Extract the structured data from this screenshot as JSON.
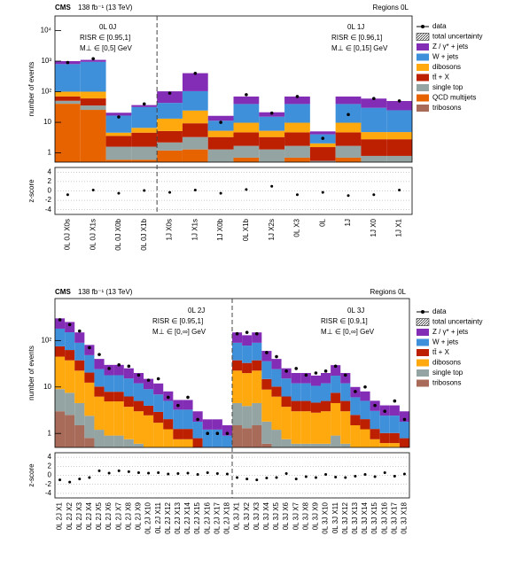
{
  "chart_data": [
    {
      "type": "stacked_bar",
      "title": "CMS",
      "subtitle": "138 fb⁻¹ (13 TeV)",
      "region_label": "Regions 0L",
      "ylabel": "number of events",
      "log_scale": true,
      "ylim": [
        0.5,
        30000
      ],
      "yticks": [
        1,
        10,
        {
          "value": 100,
          "label": "10²"
        },
        {
          "value": 1000,
          "label": "10³"
        },
        {
          "value": 10000,
          "label": "10⁴"
        }
      ],
      "separator_after": 4,
      "annotations": [
        "0L 0J",
        "RISR ∈ [0.95,1]",
        "M⊥ ∈ [0,5] GeV",
        "0L 1J",
        "RISR ∈ [0.96,1]",
        "M⊥ ∈ [0,15] GeV"
      ],
      "categories": [
        "0L 0J X0s",
        "0L 0J X1s",
        "0L 0J X0b",
        "0L 0J X1b",
        "1J X0s",
        "1J X1s",
        "1J X0b",
        "0L X1b",
        "1J X2s",
        "0L X3",
        "0L",
        "1J",
        "1J X0",
        "1J X1"
      ],
      "uncertainty_label": "total uncertainty",
      "data": {
        "name": "data",
        "values": [
          900,
          1200,
          15,
          40,
          90,
          400,
          10,
          80,
          20,
          70,
          3,
          18,
          60,
          50
        ]
      },
      "series": [
        {
          "name": "Z / γ* + jets",
          "color": "#832db6",
          "values": [
            200,
            150,
            4,
            5,
            60,
            300,
            5,
            30,
            6,
            30,
            1,
            30,
            30,
            25
          ]
        },
        {
          "name": "W + jets",
          "color": "#3f90da",
          "values": [
            700,
            850,
            12,
            25,
            30,
            80,
            6,
            30,
            10,
            30,
            2,
            30,
            25,
            20
          ]
        },
        {
          "name": "dibosons",
          "color": "#ffa90e",
          "values": [
            30,
            40,
            1,
            2,
            8,
            15,
            2,
            5,
            2,
            5,
            0.5,
            5,
            2,
            2
          ]
        },
        {
          "name": "tt̄ + X",
          "color": "#bd1f01",
          "values": [
            20,
            25,
            2,
            3,
            3,
            6,
            2,
            3,
            2,
            3,
            1,
            3,
            2,
            2
          ]
        },
        {
          "name": "single top",
          "color": "#94a4a2",
          "values": [
            10,
            10,
            1,
            1,
            1,
            2,
            1,
            1,
            1,
            1,
            0.3,
            1,
            0.5,
            0.5
          ]
        },
        {
          "name": "QCD multijets",
          "color": "#e76300",
          "values": [
            40,
            25,
            0.5,
            0.5,
            1,
            1,
            0.2,
            0.5,
            0.2,
            0.5,
            0.2,
            0.5,
            0.2,
            0.2
          ]
        },
        {
          "name": "tribosons",
          "color": "#a96b59",
          "values": [
            0.5,
            0.5,
            0.1,
            0.1,
            0.2,
            0.3,
            0.1,
            0.2,
            0.1,
            0.2,
            0.05,
            0.2,
            0.1,
            0.1
          ]
        }
      ],
      "zscore": {
        "label": "z-score",
        "ylim": [
          -5,
          5
        ],
        "yticks": [
          -4,
          -2,
          0,
          2,
          4
        ],
        "values": [
          -0.8,
          0.2,
          -0.5,
          0.1,
          -0.3,
          0.2,
          -0.5,
          0.3,
          1,
          -0.8,
          -0.3,
          -1,
          -0.8,
          0.2
        ]
      }
    },
    {
      "type": "stacked_bar",
      "title": "CMS",
      "subtitle": "138 fb⁻¹ (13 TeV)",
      "region_label": "Regions 0L",
      "ylabel": "number of events",
      "log_scale": true,
      "ylim": [
        0.5,
        800
      ],
      "yticks": [
        1,
        10,
        {
          "value": 100,
          "label": "10²"
        }
      ],
      "separator_after": 18,
      "annotations": [
        "0L 2J",
        "RISR ∈ [0.95,1]",
        "M⊥ ∈ [0,∞] GeV",
        "0L 3J",
        "RISR ∈ [0.9,1]",
        "M⊥ ∈ [0,∞] GeV"
      ],
      "categories": [
        "0L 2J X1",
        "0L 2J X2",
        "0L 2J X3",
        "0L 2J X4",
        "0L 2J X5",
        "0L 2J X6",
        "0L 2J X7",
        "0L 2J X8",
        "0L 2J X9",
        "0L 2J X10",
        "0L 2J X11",
        "0L 2J X12",
        "0L 2J X13",
        "0L 2J X14",
        "0L 2J X15",
        "0L 2J X16",
        "0L 2J X17",
        "0L 2J X18",
        "0L 3J X1",
        "0L 3J X2",
        "0L 3J X3",
        "0L 3J X4",
        "0L 3J X5",
        "0L 3J X6",
        "0L 3J X7",
        "0L 3J X8",
        "0L 3J X9",
        "0L 3J X10",
        "0L 3J X11",
        "0L 3J X12",
        "0L 3J X13",
        "0L 3J X14",
        "0L 3J X15",
        "0L 3J X16",
        "0L 3J X17",
        "0L 3J X18"
      ],
      "uncertainty_label": "total uncertainty",
      "data": {
        "name": "data",
        "values": [
          280,
          220,
          160,
          70,
          50,
          25,
          30,
          28,
          18,
          14,
          15,
          6,
          4,
          6,
          2,
          1,
          1,
          1,
          140,
          150,
          140,
          55,
          45,
          22,
          25,
          18,
          20,
          22,
          28,
          18,
          8,
          10,
          4,
          3,
          5,
          2
        ]
      },
      "series": [
        {
          "name": "Z / γ* + jets",
          "color": "#832db6",
          "values": [
            120,
            100,
            60,
            32,
            16,
            12,
            12,
            10,
            8,
            6,
            5,
            3,
            2,
            2,
            1.2,
            0.8,
            0.8,
            0.6,
            60,
            52,
            60,
            24,
            16,
            10,
            8,
            8,
            7,
            8,
            12,
            8,
            4,
            3,
            2,
            1.6,
            1.6,
            1.2
          ]
        },
        {
          "name": "W + jets",
          "color": "#3f90da",
          "values": [
            105,
            88,
            52,
            28,
            14,
            10,
            10,
            9,
            7,
            5,
            4,
            3,
            2,
            2,
            1,
            0.7,
            0.7,
            0.5,
            52,
            45,
            52,
            21,
            14,
            9,
            7,
            7,
            6,
            7,
            10,
            7,
            3.5,
            3,
            1.8,
            1.4,
            1.4,
            1
          ]
        },
        {
          "name": "tt̄ + X",
          "color": "#bd1f01",
          "values": [
            30,
            25,
            15,
            8,
            4,
            3,
            3,
            2.5,
            2,
            1.5,
            1.2,
            0.8,
            0.5,
            0.5,
            0.3,
            0.2,
            0.2,
            0.15,
            15,
            13,
            15,
            6,
            4,
            2.5,
            2,
            2,
            1.8,
            2,
            3,
            2,
            1,
            0.8,
            0.5,
            0.4,
            0.4,
            0.3
          ]
        },
        {
          "name": "dibosons",
          "color": "#ffa90e",
          "values": [
            36,
            30,
            18,
            10,
            5,
            4,
            4,
            3,
            2.4,
            2,
            1.4,
            1,
            0.6,
            0.6,
            0.4,
            0.25,
            0.25,
            0.2,
            18,
            16,
            18,
            7,
            5,
            3,
            2.4,
            2.4,
            2.2,
            2.4,
            3.6,
            2.4,
            1.2,
            1,
            0.6,
            0.5,
            0.5,
            0.4
          ]
        },
        {
          "name": "single top",
          "color": "#94a4a2",
          "values": [
            6,
            5,
            3,
            1.6,
            0.8,
            0.6,
            0.6,
            0.5,
            0.4,
            0.3,
            0.2,
            0.15,
            0.1,
            0.1,
            0.06,
            0.04,
            0.04,
            0.03,
            3,
            2.6,
            3,
            1.2,
            0.8,
            0.5,
            0.4,
            0.4,
            0.4,
            0.4,
            0.6,
            0.4,
            0.2,
            0.15,
            0.1,
            0.08,
            0.08,
            0.06
          ]
        },
        {
          "name": "tribosons",
          "color": "#a96b59",
          "values": [
            3,
            2.5,
            1.5,
            0.8,
            0.4,
            0.3,
            0.3,
            0.25,
            0.2,
            0.15,
            0.1,
            0.08,
            0.05,
            0.05,
            0.03,
            0.02,
            0.02,
            0.02,
            1.5,
            1.3,
            1.5,
            0.6,
            0.4,
            0.25,
            0.2,
            0.2,
            0.2,
            0.2,
            0.3,
            0.2,
            0.1,
            0.08,
            0.05,
            0.04,
            0.04,
            0.03
          ]
        }
      ],
      "zscore": {
        "label": "z-score",
        "ylim": [
          -5,
          5
        ],
        "yticks": [
          -4,
          -2,
          0,
          2,
          4
        ],
        "values": [
          -1,
          -1.5,
          -0.8,
          -0.5,
          1,
          0.5,
          1,
          0.8,
          0.6,
          0.5,
          0.6,
          0.3,
          0.4,
          0.5,
          0.2,
          0.6,
          0.4,
          0.3,
          -0.5,
          -0.8,
          -1,
          -0.6,
          -0.5,
          0.4,
          -0.8,
          -0.3,
          -0.5,
          0.2,
          -0.4,
          -0.5,
          -0.2,
          0.2,
          -0.3,
          0.6,
          -0.2,
          0.3
        ]
      }
    }
  ]
}
